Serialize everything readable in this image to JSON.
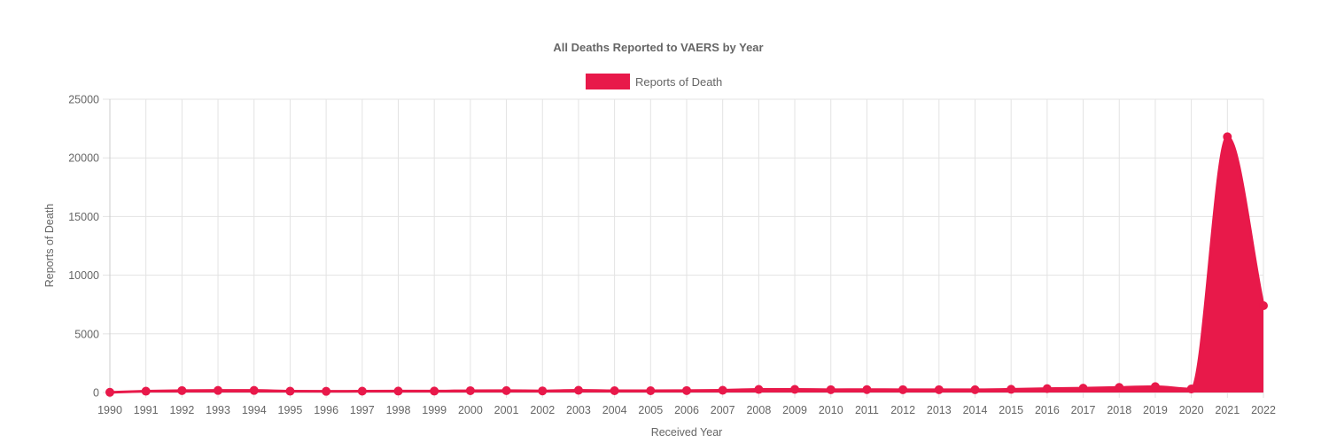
{
  "chart_data": {
    "type": "area",
    "title": "All Deaths Reported to VAERS by Year",
    "xlabel": "Received Year",
    "ylabel": "Reports of Death",
    "ylim": [
      0,
      25000
    ],
    "y_ticks": [
      "0",
      "5000",
      "10000",
      "15000",
      "20000",
      "25000"
    ],
    "grid": true,
    "legend_position": "top",
    "categories": [
      "1990",
      "1991",
      "1992",
      "1993",
      "1994",
      "1995",
      "1996",
      "1997",
      "1998",
      "1999",
      "2000",
      "2001",
      "2002",
      "2003",
      "2004",
      "2005",
      "2006",
      "2007",
      "2008",
      "2009",
      "2010",
      "2011",
      "2012",
      "2013",
      "2014",
      "2015",
      "2016",
      "2017",
      "2018",
      "2019",
      "2020",
      "2021",
      "2022"
    ],
    "series": [
      {
        "name": "Reports of Death",
        "color": "#e8194a",
        "values": [
          15,
          110,
          165,
          175,
          175,
          110,
          100,
          115,
          120,
          120,
          155,
          160,
          135,
          190,
          150,
          150,
          165,
          190,
          260,
          265,
          240,
          250,
          240,
          240,
          235,
          270,
          330,
          370,
          430,
          500,
          300,
          21800,
          7400
        ]
      }
    ]
  }
}
